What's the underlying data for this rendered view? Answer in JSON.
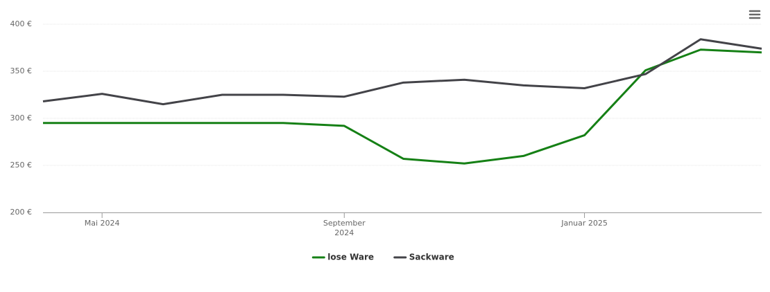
{
  "chart_data": {
    "type": "line",
    "x": [
      "2024-04",
      "2024-05",
      "2024-06",
      "2024-07",
      "2024-08",
      "2024-09",
      "2024-10",
      "2024-11",
      "2024-12",
      "2025-01",
      "2025-02",
      "2025-03",
      "2025-04"
    ],
    "series": [
      {
        "name": "lose Ware",
        "color": "#158015",
        "values": [
          295,
          295,
          295,
          295,
          295,
          292,
          257,
          252,
          260,
          282,
          351,
          373,
          370
        ]
      },
      {
        "name": "Sackware",
        "color": "#434348",
        "values": [
          318,
          326,
          315,
          325,
          325,
          323,
          338,
          341,
          335,
          332,
          347,
          384,
          374
        ]
      }
    ],
    "xlim": [
      "2024-04",
      "2025-04"
    ],
    "xticks": [
      {
        "value": "2024-05",
        "label": "Mai 2024"
      },
      {
        "value": "2024-09",
        "label": "September 2024"
      },
      {
        "value": "2025-01",
        "label": "Januar 2025"
      }
    ],
    "ylim": [
      200,
      400
    ],
    "yticks": [
      {
        "value": 200,
        "label": "200 €"
      },
      {
        "value": 250,
        "label": "250 €"
      },
      {
        "value": 300,
        "label": "300 €"
      },
      {
        "value": 350,
        "label": "350 €"
      },
      {
        "value": 400,
        "label": "400 €"
      }
    ],
    "grid": true,
    "legend": "bottom"
  }
}
